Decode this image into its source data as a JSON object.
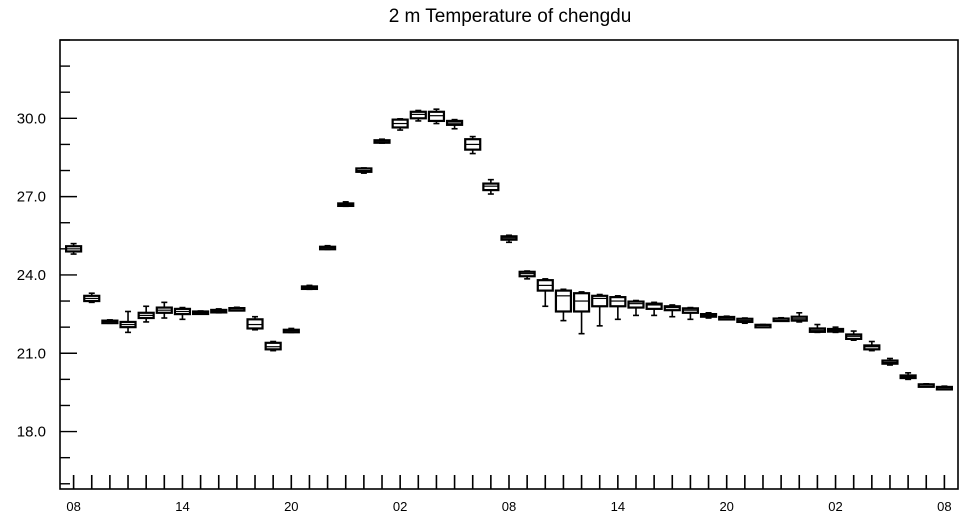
{
  "chart_data": {
    "type": "boxplot",
    "title": "2 m Temperature of chengdu",
    "xlabel": "",
    "ylabel": "",
    "ylim": [
      15.8,
      33.0
    ],
    "yticks": [
      18.0,
      21.0,
      24.0,
      27.0,
      30.0
    ],
    "ytick_labels": [
      "18.0",
      "21.0",
      "24.0",
      "27.0",
      "30.0"
    ],
    "xlim": [
      -0.75,
      48.75
    ],
    "xticks": [
      0,
      6,
      12,
      18,
      24,
      30,
      36,
      42,
      48
    ],
    "xtick_labels": [
      "08",
      "14",
      "20",
      "02",
      "08",
      "14",
      "20",
      "02",
      "08"
    ],
    "grid": false,
    "colors": {
      "box": "#000000",
      "background": "#ffffff"
    },
    "series": [
      {
        "boxes": [
          {
            "x": 0,
            "whislo": 24.8,
            "q1": 24.9,
            "med": 25.0,
            "q3": 25.1,
            "whishi": 25.2
          },
          {
            "x": 1,
            "whislo": 22.95,
            "q1": 23.0,
            "med": 23.1,
            "q3": 23.2,
            "whishi": 23.3
          },
          {
            "x": 2,
            "whislo": 22.15,
            "q1": 22.18,
            "med": 22.22,
            "q3": 22.25,
            "whishi": 22.28
          },
          {
            "x": 3,
            "whislo": 21.8,
            "q1": 22.0,
            "med": 22.1,
            "q3": 22.2,
            "whishi": 22.6
          },
          {
            "x": 4,
            "whislo": 22.2,
            "q1": 22.35,
            "med": 22.45,
            "q3": 22.55,
            "whishi": 22.8
          },
          {
            "x": 5,
            "whislo": 22.35,
            "q1": 22.55,
            "med": 22.65,
            "q3": 22.75,
            "whishi": 22.95
          },
          {
            "x": 6,
            "whislo": 22.3,
            "q1": 22.5,
            "med": 22.6,
            "q3": 22.7,
            "whishi": 22.75
          },
          {
            "x": 7,
            "whislo": 22.5,
            "q1": 22.53,
            "med": 22.56,
            "q3": 22.6,
            "whishi": 22.62
          },
          {
            "x": 8,
            "whislo": 22.55,
            "q1": 22.58,
            "med": 22.62,
            "q3": 22.66,
            "whishi": 22.7
          },
          {
            "x": 9,
            "whislo": 22.66,
            "q1": 22.68,
            "med": 22.71,
            "q3": 22.73,
            "whishi": 22.76
          },
          {
            "x": 10,
            "whislo": 21.9,
            "q1": 21.95,
            "med": 22.1,
            "q3": 22.3,
            "whishi": 22.4
          },
          {
            "x": 11,
            "whislo": 21.1,
            "q1": 21.15,
            "med": 21.25,
            "q3": 21.4,
            "whishi": 21.45
          },
          {
            "x": 12,
            "whislo": 21.8,
            "q1": 21.83,
            "med": 21.86,
            "q3": 21.9,
            "whishi": 21.95
          },
          {
            "x": 13,
            "whislo": 23.45,
            "q1": 23.48,
            "med": 23.52,
            "q3": 23.56,
            "whishi": 23.6
          },
          {
            "x": 14,
            "whislo": 24.98,
            "q1": 25.0,
            "med": 25.04,
            "q3": 25.08,
            "whishi": 25.12
          },
          {
            "x": 15,
            "whislo": 26.63,
            "q1": 26.66,
            "med": 26.7,
            "q3": 26.74,
            "whishi": 26.8
          },
          {
            "x": 16,
            "whislo": 27.9,
            "q1": 27.95,
            "med": 28.0,
            "q3": 28.08,
            "whishi": 28.1
          },
          {
            "x": 17,
            "whislo": 29.05,
            "q1": 29.08,
            "med": 29.12,
            "q3": 29.16,
            "whishi": 29.2
          },
          {
            "x": 18,
            "whislo": 29.55,
            "q1": 29.65,
            "med": 29.8,
            "q3": 29.95,
            "whishi": 29.98
          },
          {
            "x": 19,
            "whislo": 29.9,
            "q1": 30.0,
            "med": 30.15,
            "q3": 30.25,
            "whishi": 30.3
          },
          {
            "x": 20,
            "whislo": 29.8,
            "q1": 29.9,
            "med": 30.1,
            "q3": 30.25,
            "whishi": 30.35
          },
          {
            "x": 21,
            "whislo": 29.6,
            "q1": 29.75,
            "med": 29.82,
            "q3": 29.9,
            "whishi": 29.95
          },
          {
            "x": 22,
            "whislo": 28.65,
            "q1": 28.8,
            "med": 29.0,
            "q3": 29.2,
            "whishi": 29.3
          },
          {
            "x": 23,
            "whislo": 27.1,
            "q1": 27.25,
            "med": 27.4,
            "q3": 27.5,
            "whishi": 27.65
          },
          {
            "x": 24,
            "whislo": 25.25,
            "q1": 25.35,
            "med": 25.42,
            "q3": 25.48,
            "whishi": 25.52
          },
          {
            "x": 25,
            "whislo": 23.85,
            "q1": 23.95,
            "med": 24.05,
            "q3": 24.12,
            "whishi": 24.15
          },
          {
            "x": 26,
            "whislo": 22.8,
            "q1": 23.4,
            "med": 23.6,
            "q3": 23.8,
            "whishi": 23.85
          },
          {
            "x": 27,
            "whislo": 22.25,
            "q1": 22.6,
            "med": 23.2,
            "q3": 23.4,
            "whishi": 23.45
          },
          {
            "x": 28,
            "whislo": 21.75,
            "q1": 22.6,
            "med": 23.0,
            "q3": 23.3,
            "whishi": 23.35
          },
          {
            "x": 29,
            "whislo": 22.05,
            "q1": 22.8,
            "med": 23.1,
            "q3": 23.2,
            "whishi": 23.25
          },
          {
            "x": 30,
            "whislo": 22.3,
            "q1": 22.8,
            "med": 23.0,
            "q3": 23.15,
            "whishi": 23.2
          },
          {
            "x": 31,
            "whislo": 22.45,
            "q1": 22.75,
            "med": 22.9,
            "q3": 22.98,
            "whishi": 23.02
          },
          {
            "x": 32,
            "whislo": 22.45,
            "q1": 22.7,
            "med": 22.85,
            "q3": 22.9,
            "whishi": 22.95
          },
          {
            "x": 33,
            "whislo": 22.4,
            "q1": 22.65,
            "med": 22.75,
            "q3": 22.8,
            "whishi": 22.85
          },
          {
            "x": 34,
            "whislo": 22.3,
            "q1": 22.55,
            "med": 22.65,
            "q3": 22.72,
            "whishi": 22.75
          },
          {
            "x": 35,
            "whislo": 22.35,
            "q1": 22.4,
            "med": 22.45,
            "q3": 22.5,
            "whishi": 22.55
          },
          {
            "x": 36,
            "whislo": 22.3,
            "q1": 22.33,
            "med": 22.36,
            "q3": 22.39,
            "whishi": 22.42
          },
          {
            "x": 37,
            "whislo": 22.15,
            "q1": 22.2,
            "med": 22.25,
            "q3": 22.32,
            "whishi": 22.35
          },
          {
            "x": 38,
            "whislo": 22.03,
            "q1": 22.05,
            "med": 22.07,
            "q3": 22.09,
            "whishi": 22.1
          },
          {
            "x": 39,
            "whislo": 22.27,
            "q1": 22.29,
            "med": 22.31,
            "q3": 22.33,
            "whishi": 22.36
          },
          {
            "x": 40,
            "whislo": 22.2,
            "q1": 22.25,
            "med": 22.32,
            "q3": 22.4,
            "whishi": 22.55
          },
          {
            "x": 41,
            "whislo": 21.8,
            "q1": 21.82,
            "med": 21.88,
            "q3": 21.95,
            "whishi": 22.1
          },
          {
            "x": 42,
            "whislo": 21.8,
            "q1": 21.83,
            "med": 21.88,
            "q3": 21.93,
            "whishi": 22.0
          },
          {
            "x": 43,
            "whislo": 21.5,
            "q1": 21.55,
            "med": 21.65,
            "q3": 21.72,
            "whishi": 21.85
          },
          {
            "x": 44,
            "whislo": 21.1,
            "q1": 21.15,
            "med": 21.25,
            "q3": 21.3,
            "whishi": 21.45
          },
          {
            "x": 45,
            "whislo": 20.55,
            "q1": 20.6,
            "med": 20.65,
            "q3": 20.72,
            "whishi": 20.8
          },
          {
            "x": 46,
            "whislo": 20.0,
            "q1": 20.05,
            "med": 20.1,
            "q3": 20.15,
            "whishi": 20.25
          },
          {
            "x": 47,
            "whislo": 19.75,
            "q1": 19.77,
            "med": 19.79,
            "q3": 19.81,
            "whishi": 19.83
          },
          {
            "x": 48,
            "whislo": 19.62,
            "q1": 19.65,
            "med": 19.68,
            "q3": 19.71,
            "whishi": 19.74
          }
        ]
      }
    ]
  }
}
